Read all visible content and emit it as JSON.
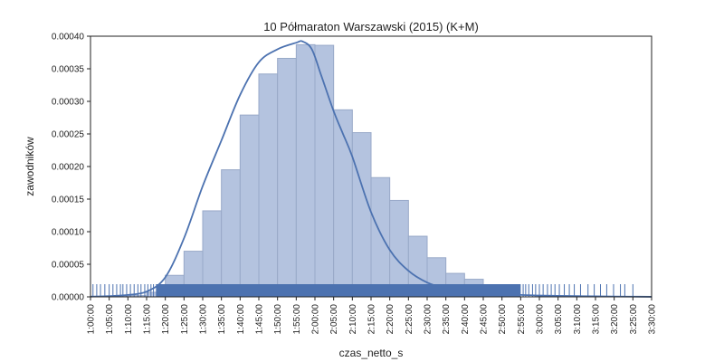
{
  "chart_data": {
    "type": "bar",
    "title": "10 Półmaraton Warszawski (2015) (K+M)",
    "xlabel": "czas_netto_s",
    "ylabel": "zawodników",
    "xlim": [
      3600,
      12600
    ],
    "ylim": [
      0,
      0.0004
    ],
    "x_tick_values": [
      3600,
      3900,
      4200,
      4500,
      4800,
      5100,
      5400,
      5700,
      6000,
      6300,
      6600,
      6900,
      7200,
      7500,
      7800,
      8100,
      8400,
      8700,
      9000,
      9300,
      9600,
      9900,
      10200,
      10500,
      10800,
      11100,
      11400,
      11700,
      12000,
      12300,
      12600
    ],
    "x_tick_labels": [
      "1:00:00",
      "1:05:00",
      "1:10:00",
      "1:15:00",
      "1:20:00",
      "1:25:00",
      "1:30:00",
      "1:35:00",
      "1:40:00",
      "1:45:00",
      "1:50:00",
      "1:55:00",
      "2:00:00",
      "2:05:00",
      "2:10:00",
      "2:15:00",
      "2:20:00",
      "2:25:00",
      "2:30:00",
      "2:35:00",
      "2:40:00",
      "2:45:00",
      "2:50:00",
      "2:55:00",
      "3:00:00",
      "3:05:00",
      "3:10:00",
      "3:15:00",
      "3:20:00",
      "3:25:00",
      "3:30:00"
    ],
    "y_tick_values": [
      0,
      5e-05,
      0.0001,
      0.00015,
      0.0002,
      0.00025,
      0.0003,
      0.00035,
      0.0004
    ],
    "y_tick_labels": [
      "0.00000",
      "0.00005",
      "0.00010",
      "0.00015",
      "0.00020",
      "0.00025",
      "0.00030",
      "0.00035",
      "0.00040"
    ],
    "histogram": {
      "bin_edges": [
        3600,
        3900,
        4200,
        4500,
        4800,
        5100,
        5400,
        5700,
        6000,
        6300,
        6600,
        6900,
        7200,
        7500,
        7800,
        8100,
        8400,
        8700,
        9000,
        9300,
        9600,
        9900
      ],
      "values": [
        5e-07,
        1e-06,
        2e-06,
        7e-06,
        3.3e-05,
        7e-05,
        0.000132,
        0.000195,
        0.000279,
        0.000342,
        0.000366,
        0.000387,
        0.000386,
        0.000287,
        0.000252,
        0.000183,
        0.000148,
        9.3e-05,
        6e-05,
        3.6e-05,
        2.7e-05
      ],
      "color": "#b4c3df",
      "edge_color": "#98a9c8"
    },
    "kde": {
      "x": [
        3600,
        3900,
        4200,
        4500,
        4800,
        5100,
        5400,
        5700,
        6000,
        6300,
        6600,
        6900,
        7000,
        7150,
        7300,
        7500,
        7650,
        7800,
        8100,
        8400,
        8700,
        9000,
        9300,
        9600,
        9900,
        10200,
        10500,
        10800,
        11100,
        11400,
        11700,
        12000,
        12300,
        12600
      ],
      "y": [
        4e-07,
        1.2e-06,
        3e-06,
        8e-06,
        3e-05,
        9e-05,
        0.00017,
        0.00024,
        0.00031,
        0.00036,
        0.00038,
        0.00039,
        0.000392,
        0.00038,
        0.00034,
        0.000285,
        0.00025,
        0.000215,
        0.00013,
        7.2e-05,
        4e-05,
        2.2e-05,
        1.3e-05,
        8e-06,
        5e-06,
        4e-06,
        3e-06,
        2e-06,
        1.6e-06,
        1.2e-06,
        8e-07,
        5e-07,
        3e-07,
        1e-07
      ],
      "color": "#4c72b0"
    },
    "rug": {
      "color": "#4c72b0",
      "dense_range": [
        4650,
        10500
      ],
      "sparse_x": [
        3640,
        3700,
        3760,
        3830,
        3900,
        3960,
        4020,
        4080,
        4120,
        4180,
        4240,
        4300,
        4360,
        4410,
        4470,
        4520,
        4570,
        4610,
        10540,
        10580,
        10630,
        10690,
        10740,
        10800,
        10860,
        10930,
        10990,
        11050,
        11120,
        11200,
        11280,
        11360,
        11460,
        11580,
        11680,
        11780,
        11880,
        11990,
        12100,
        12170,
        12300
      ]
    },
    "grid": false,
    "legend": "none"
  }
}
